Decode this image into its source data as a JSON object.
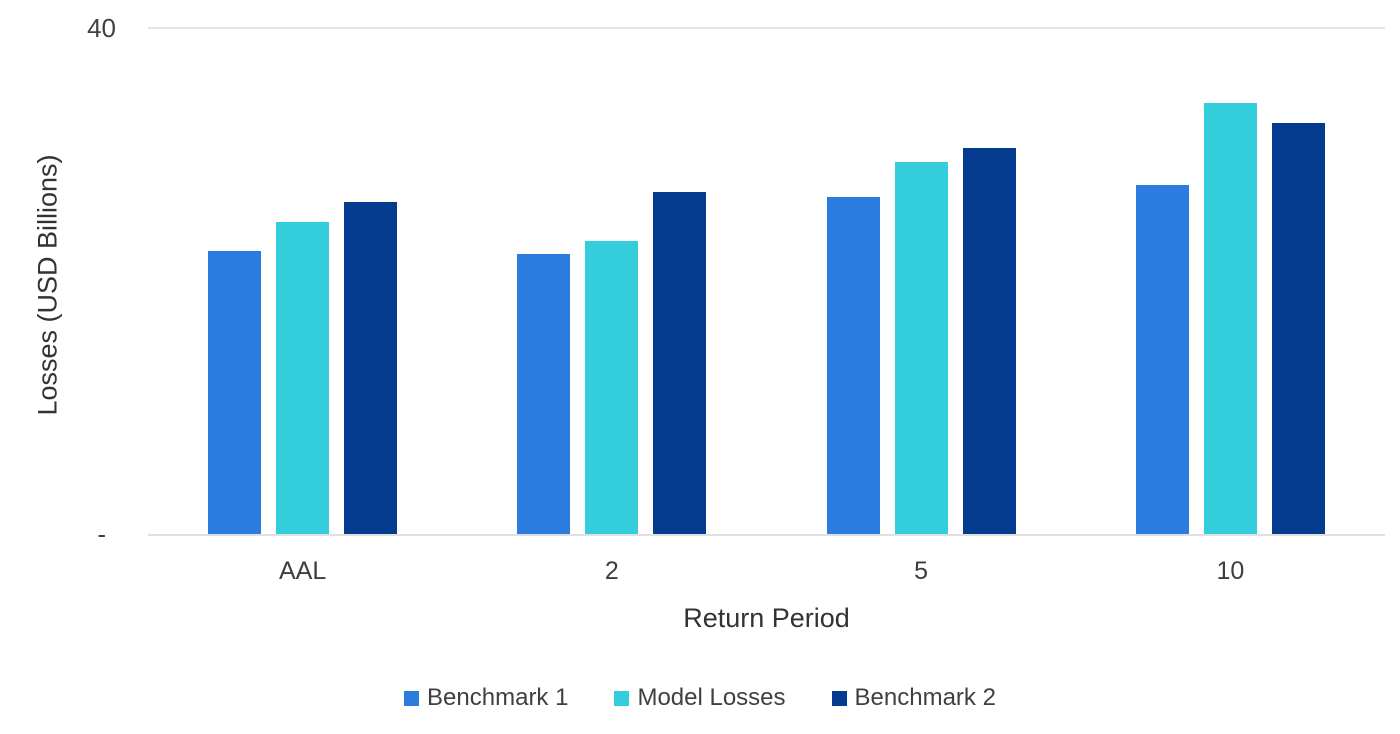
{
  "chart_data": {
    "type": "bar",
    "title": "",
    "xlabel": "Return Period",
    "ylabel": "Losses (USD Billions)",
    "categories": [
      "AAL",
      "2",
      "5",
      "10"
    ],
    "series": [
      {
        "name": "Benchmark 1",
        "color": "#2C7CDF",
        "values": [
          22.4,
          22.2,
          26.7,
          27.6
        ]
      },
      {
        "name": "Model Losses",
        "color": "#34CDDB",
        "values": [
          24.7,
          23.2,
          29.4,
          34.1
        ]
      },
      {
        "name": "Benchmark 2",
        "color": "#053B8E",
        "values": [
          26.3,
          27.1,
          30.5,
          32.5
        ]
      }
    ],
    "ylim": [
      0,
      40
    ],
    "y_axis": {
      "max_tick_label": "40",
      "zero_tick_label": "-"
    },
    "grid": "horizontal lines at y=0 and y=40 only",
    "legend_position": "bottom-center",
    "gridline_color": "#e2e2e2",
    "text_color": "#3d3d3d"
  }
}
